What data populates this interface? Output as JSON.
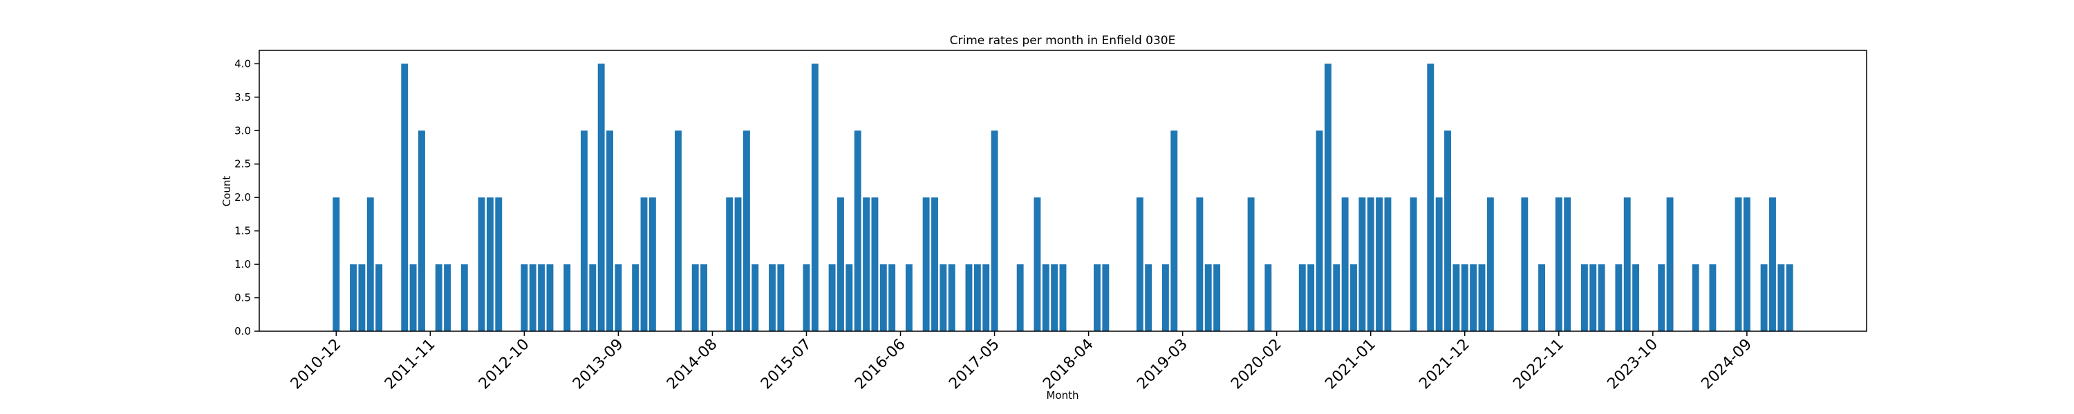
{
  "chart_data": {
    "type": "bar",
    "title": "Crime rates per month in Enfield 030E",
    "xlabel": "Month",
    "ylabel": "Count",
    "color": "#1f77b4",
    "x": [
      "2010-12",
      "2011-02",
      "2011-03",
      "2011-04",
      "2011-05",
      "2011-08",
      "2011-09",
      "2011-10",
      "2011-12",
      "2012-01",
      "2012-03",
      "2012-05",
      "2012-06",
      "2012-07",
      "2012-10",
      "2012-11",
      "2012-12",
      "2013-01",
      "2013-03",
      "2013-05",
      "2013-06",
      "2013-07",
      "2013-08",
      "2013-09",
      "2013-11",
      "2013-12",
      "2014-01",
      "2014-04",
      "2014-06",
      "2014-07",
      "2014-10",
      "2014-11",
      "2014-12",
      "2015-01",
      "2015-03",
      "2015-04",
      "2015-07",
      "2015-08",
      "2015-10",
      "2015-11",
      "2015-12",
      "2016-01",
      "2016-02",
      "2016-03",
      "2016-04",
      "2016-05",
      "2016-07",
      "2016-09",
      "2016-10",
      "2016-11",
      "2016-12",
      "2017-02",
      "2017-03",
      "2017-04",
      "2017-05",
      "2017-08",
      "2017-10",
      "2017-11",
      "2017-12",
      "2018-01",
      "2018-05",
      "2018-06",
      "2018-10",
      "2018-11",
      "2019-01",
      "2019-02",
      "2019-05",
      "2019-06",
      "2019-07",
      "2019-11",
      "2020-01",
      "2020-05",
      "2020-06",
      "2020-07",
      "2020-08",
      "2020-09",
      "2020-10",
      "2020-11",
      "2020-12",
      "2021-01",
      "2021-02",
      "2021-03",
      "2021-06",
      "2021-08",
      "2021-09",
      "2021-10",
      "2021-11",
      "2021-12",
      "2022-01",
      "2022-02",
      "2022-03",
      "2022-07",
      "2022-09",
      "2022-11",
      "2022-12",
      "2023-02",
      "2023-03",
      "2023-04",
      "2023-06",
      "2023-07",
      "2023-08",
      "2023-11",
      "2023-12",
      "2024-03",
      "2024-05",
      "2024-08",
      "2024-09",
      "2024-11",
      "2024-12",
      "2025-01",
      "2025-02"
    ],
    "values": [
      2,
      1,
      1,
      2,
      1,
      4,
      1,
      3,
      1,
      1,
      1,
      2,
      2,
      2,
      1,
      1,
      1,
      1,
      1,
      3,
      1,
      4,
      3,
      1,
      1,
      2,
      2,
      3,
      1,
      1,
      2,
      2,
      3,
      1,
      1,
      1,
      1,
      4,
      1,
      2,
      1,
      3,
      2,
      2,
      1,
      1,
      1,
      2,
      2,
      1,
      1,
      1,
      1,
      1,
      3,
      1,
      2,
      1,
      1,
      1,
      1,
      1,
      2,
      1,
      1,
      3,
      2,
      1,
      1,
      2,
      1,
      1,
      1,
      3,
      4,
      1,
      2,
      1,
      2,
      2,
      2,
      2,
      2,
      4,
      2,
      3,
      1,
      1,
      1,
      1,
      2,
      2,
      1,
      2,
      2,
      1,
      1,
      1,
      1,
      2,
      1,
      1,
      2,
      1,
      1,
      2,
      2,
      1,
      2,
      1,
      1
    ],
    "xlim": [
      "2010-03",
      "2025-11"
    ],
    "xticks": [
      "2010-12",
      "2011-11",
      "2012-10",
      "2013-09",
      "2014-08",
      "2015-07",
      "2016-06",
      "2017-05",
      "2018-04",
      "2019-03",
      "2020-02",
      "2021-01",
      "2021-12",
      "2022-11",
      "2023-10",
      "2024-09"
    ],
    "ylim": [
      0,
      4.2
    ],
    "yticks": [
      {
        "value": 0,
        "label": "0.0"
      },
      0.5,
      {
        "value": 1,
        "label": "1.0"
      },
      1.5,
      {
        "value": 2,
        "label": "2.0"
      },
      2.5,
      {
        "value": 3,
        "label": "3.0"
      },
      3.5,
      {
        "value": 4,
        "label": "4.0"
      }
    ]
  }
}
